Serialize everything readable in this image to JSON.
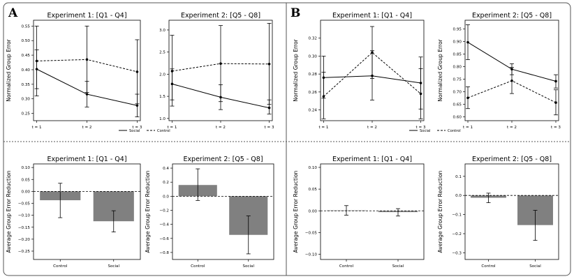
{
  "panels": [
    {
      "label": "A"
    },
    {
      "label": "B"
    }
  ],
  "colors": {
    "bar": "#808080",
    "line": "#000000",
    "axis": "#000000",
    "frame": "#555555"
  },
  "chart_data": [
    {
      "id": "A1",
      "type": "line",
      "panel": "A",
      "title": "Experiment 1: [Q1 - Q4]",
      "xlabel": "",
      "ylabel": "Normalized Group Error",
      "categories": [
        "t = 1",
        "t = 2",
        "t = 3"
      ],
      "ylim": [
        0.225,
        0.57
      ],
      "yticks": [
        0.25,
        0.3,
        0.35,
        0.4,
        0.45,
        0.5,
        0.55
      ],
      "yticklabels": [
        "0.25",
        "0.30",
        "0.35",
        "0.40",
        "0.45",
        "0.50",
        "0.55"
      ],
      "legend": [
        "Social",
        "Control"
      ],
      "series": [
        {
          "name": "Social",
          "style": "solid",
          "values": [
            0.402,
            0.316,
            0.277
          ],
          "err_low": [
            0.335,
            0.272,
            0.238
          ],
          "err_high": [
            0.468,
            0.36,
            0.316
          ]
        },
        {
          "name": "Control",
          "style": "dashed",
          "values": [
            0.43,
            0.435,
            0.393
          ],
          "err_low": [
            0.31,
            0.322,
            0.283
          ],
          "err_high": [
            0.55,
            0.55,
            0.503
          ]
        }
      ]
    },
    {
      "id": "A2",
      "type": "line",
      "panel": "A",
      "title": "Experiment 2: [Q5 - Q8]",
      "xlabel": "",
      "ylabel": "",
      "categories": [
        "t = 1",
        "t = 2",
        "t = 3"
      ],
      "ylim": [
        0.95,
        3.22
      ],
      "yticks": [
        1.0,
        1.5,
        2.0,
        2.5,
        3.0
      ],
      "yticklabels": [
        "1.0",
        "1.5",
        "2.0",
        "2.5",
        "3.0"
      ],
      "legend": [],
      "series": [
        {
          "name": "Social",
          "style": "solid",
          "values": [
            1.78,
            1.48,
            1.24
          ],
          "err_low": [
            1.42,
            1.2,
            1.1
          ],
          "err_high": [
            2.12,
            1.76,
            1.42
          ]
        },
        {
          "name": "Control",
          "style": "dashed",
          "values": [
            2.07,
            2.24,
            2.23
          ],
          "err_low": [
            1.28,
            1.38,
            1.32
          ],
          "err_high": [
            2.88,
            3.1,
            3.15
          ]
        }
      ]
    },
    {
      "id": "B1",
      "type": "line",
      "panel": "B",
      "title": "Experiment 1: [Q1 - Q4]",
      "xlabel": "",
      "ylabel": "Normalized Group Error",
      "categories": [
        "t = 1",
        "t = 2",
        "t = 3"
      ],
      "ylim": [
        0.228,
        0.34
      ],
      "yticks": [
        0.24,
        0.26,
        0.28,
        0.3,
        0.32
      ],
      "yticklabels": [
        "0.24",
        "0.26",
        "0.28",
        "0.30",
        "0.32"
      ],
      "legend": [
        "Social",
        "Control"
      ],
      "series": [
        {
          "name": "Social",
          "style": "solid",
          "values": [
            0.276,
            0.278,
            0.27
          ],
          "err_low": [
            0.253,
            0.251,
            0.241
          ],
          "err_high": [
            0.3,
            0.306,
            0.299
          ]
        },
        {
          "name": "Control",
          "style": "dashed",
          "values": [
            0.255,
            0.304,
            0.258
          ],
          "err_low": [
            0.23,
            0.275,
            0.23
          ],
          "err_high": [
            0.282,
            0.333,
            0.286
          ]
        }
      ]
    },
    {
      "id": "B2",
      "type": "line",
      "panel": "B",
      "title": "Experiment 2: [Q5 - Q8]",
      "xlabel": "",
      "ylabel": "Normalized Group Error",
      "categories": [
        "t = 1",
        "t = 2",
        "t = 3"
      ],
      "ylim": [
        0.585,
        0.985
      ],
      "yticks": [
        0.6,
        0.65,
        0.7,
        0.75,
        0.8,
        0.85,
        0.9,
        0.95
      ],
      "yticklabels": [
        "0.60",
        "0.65",
        "0.70",
        "0.75",
        "0.80",
        "0.85",
        "0.90",
        "0.95"
      ],
      "legend": [
        "Social",
        "Control"
      ],
      "series": [
        {
          "name": "Social",
          "style": "solid",
          "values": [
            0.897,
            0.79,
            0.742
          ],
          "err_low": [
            0.828,
            0.768,
            0.715
          ],
          "err_high": [
            0.967,
            0.812,
            0.768
          ]
        },
        {
          "name": "Control",
          "style": "dashed",
          "values": [
            0.676,
            0.744,
            0.657
          ],
          "err_low": [
            0.633,
            0.693,
            0.608
          ],
          "err_high": [
            0.72,
            0.797,
            0.708
          ]
        }
      ]
    },
    {
      "id": "A3",
      "type": "bar",
      "panel": "A",
      "title": "Experiment 1: [Q1 - Q4]",
      "xlabel": "",
      "ylabel": "Average Group Error Reduction",
      "categories": [
        "Control",
        "Social"
      ],
      "ylim": [
        -0.285,
        0.115
      ],
      "yticks": [
        0.1,
        0.05,
        0.0,
        -0.05,
        -0.1,
        -0.15,
        -0.2,
        -0.25
      ],
      "yticklabels": [
        "0.10",
        "0.05",
        "0.00",
        "−0.05",
        "−0.10",
        "−0.15",
        "−0.20",
        "−0.25"
      ],
      "values": [
        -0.037,
        -0.125
      ],
      "err_low": [
        -0.11,
        -0.17
      ],
      "err_high": [
        0.034,
        -0.081
      ]
    },
    {
      "id": "A4",
      "type": "bar",
      "panel": "A",
      "title": "Experiment 2: [Q5 - Q8]",
      "xlabel": "",
      "ylabel": "Average Group Error Reduction",
      "categories": [
        "Control",
        "Social"
      ],
      "ylim": [
        -0.9,
        0.46
      ],
      "yticks": [
        0.4,
        0.2,
        0.0,
        -0.2,
        -0.4,
        -0.6,
        -0.8
      ],
      "yticklabels": [
        "0.4",
        "0.2",
        "0.0",
        "−0.2",
        "−0.4",
        "−0.6",
        "−0.8"
      ],
      "values": [
        0.16,
        -0.55
      ],
      "err_low": [
        -0.06,
        -0.82
      ],
      "err_high": [
        0.39,
        -0.28
      ]
    },
    {
      "id": "B3",
      "type": "bar",
      "panel": "B",
      "title": "Experiment 1: [Q1 - Q4]",
      "xlabel": "",
      "ylabel": "Average Group Error Reduction",
      "categories": [
        "Control",
        "Social"
      ],
      "ylim": [
        -0.112,
        0.108
      ],
      "yticks": [
        0.1,
        0.05,
        0.0,
        -0.05,
        -0.1
      ],
      "yticklabels": [
        "0.10",
        "0.05",
        "0.00",
        "−0.05",
        "−0.10"
      ],
      "values": [
        0.001,
        -0.003
      ],
      "err_low": [
        -0.01,
        -0.012
      ],
      "err_high": [
        0.012,
        0.005
      ]
    },
    {
      "id": "B4",
      "type": "bar",
      "panel": "B",
      "title": "Experiment 2: [Q5 - Q8]",
      "xlabel": "",
      "ylabel": "Average Group Error Reduction",
      "categories": [
        "Control",
        "Social"
      ],
      "ylim": [
        -0.335,
        0.165
      ],
      "yticks": [
        0.1,
        0.0,
        -0.1,
        -0.2,
        -0.3
      ],
      "yticklabels": [
        "0.1",
        "0.0",
        "−0.1",
        "−0.2",
        "−0.3"
      ],
      "values": [
        -0.012,
        -0.155
      ],
      "err_low": [
        -0.038,
        -0.235
      ],
      "err_high": [
        0.012,
        -0.078
      ]
    }
  ]
}
